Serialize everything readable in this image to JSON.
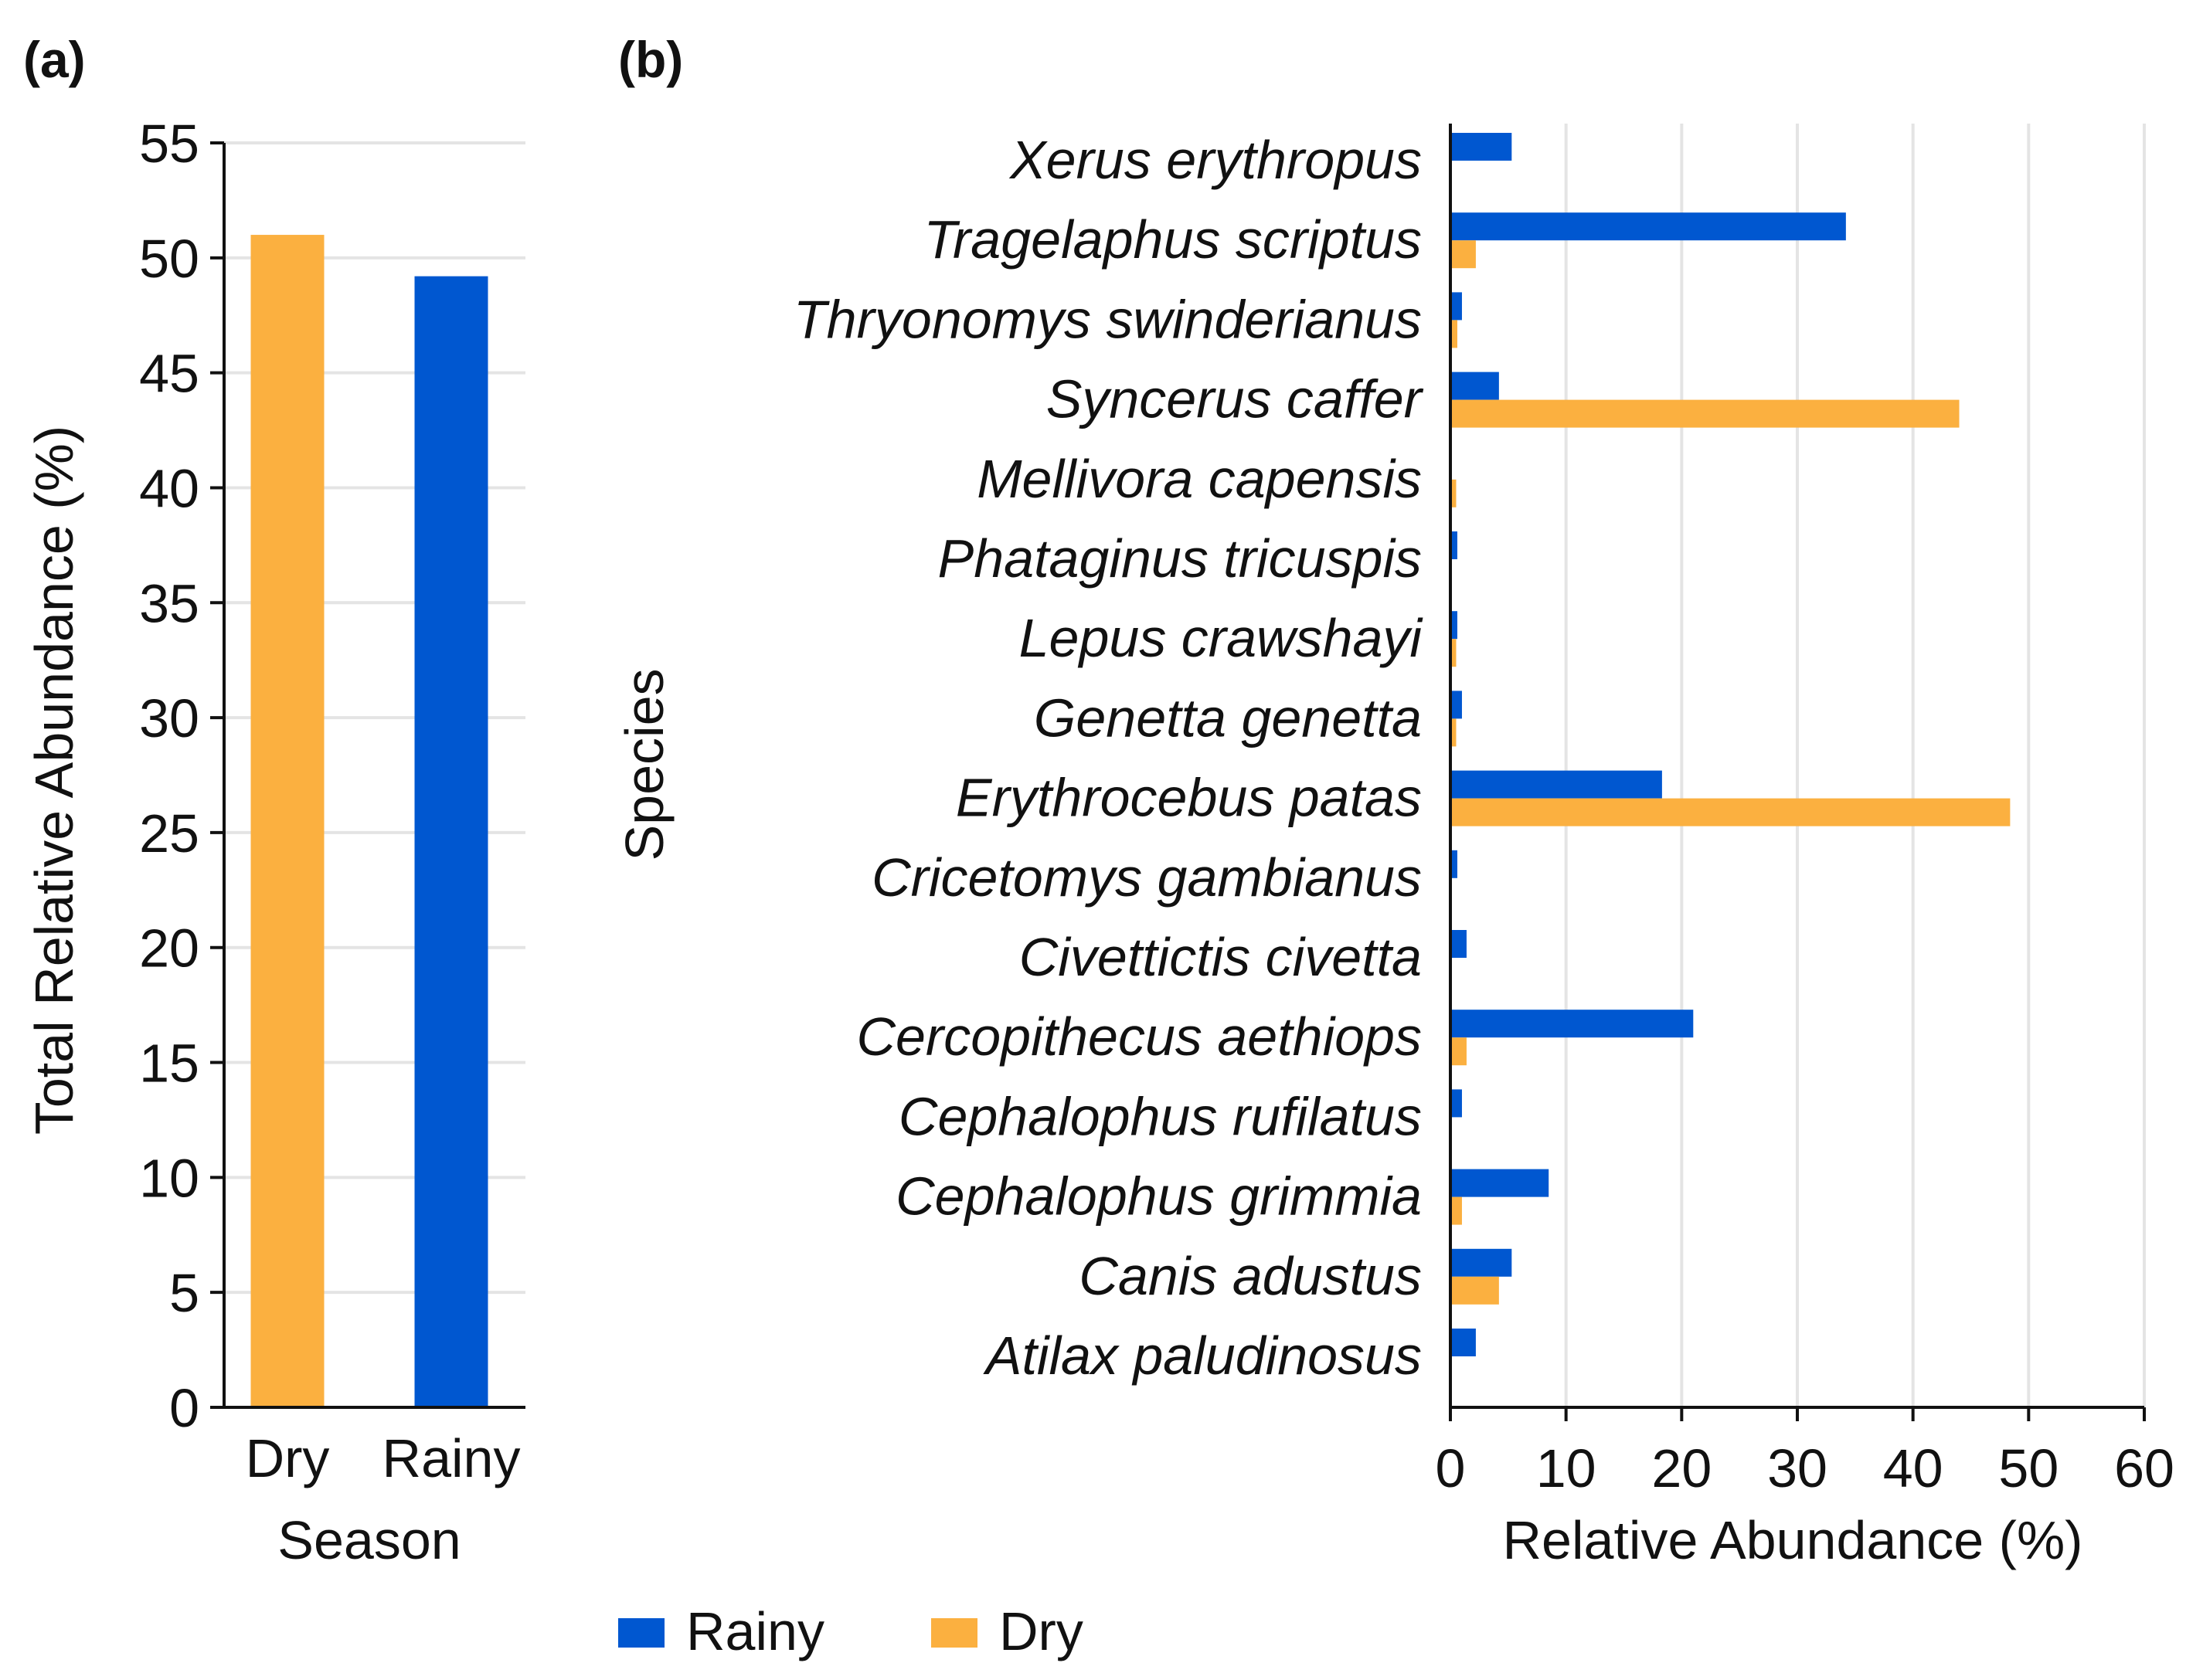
{
  "colors": {
    "rainy": "#0057D0",
    "dry": "#FBB040",
    "grid": "#E4E4E4",
    "axis": "#111111"
  },
  "chart_data": [
    {
      "panel": "(a)",
      "type": "bar",
      "categories": [
        "Dry",
        "Rainy"
      ],
      "values": [
        51.0,
        49.2
      ],
      "xlabel": "Season",
      "ylabel": "Total Relative Abundance (%)",
      "ylim": [
        0,
        55
      ],
      "yticks": [
        "0",
        "5",
        "10",
        "15",
        "20",
        "25",
        "30",
        "35",
        "40",
        "45",
        "50",
        "55"
      ],
      "grid": true
    },
    {
      "panel": "(b)",
      "type": "bar",
      "orientation": "horizontal",
      "categories": [
        "Xerus erythropus",
        "Tragelaphus scriptus",
        "Thryonomys swinderianus",
        "Syncerus caffer",
        "Mellivora capensis",
        "Phataginus tricuspis",
        "Lepus crawshayi",
        "Genetta genetta",
        "Erythrocebus patas",
        "Cricetomys gambianus",
        "Civettictis civetta",
        "Cercopithecus aethiops",
        "Cephalophus rufilatus",
        "Cephalophus grimmia",
        "Canis adustus",
        "Atilax paludinosus"
      ],
      "series": [
        {
          "name": "Rainy",
          "values": [
            5.3,
            34.2,
            1.0,
            4.2,
            0,
            0.6,
            0.6,
            1.0,
            18.3,
            0.6,
            1.4,
            21.0,
            1.0,
            8.5,
            5.3,
            2.2
          ]
        },
        {
          "name": "Dry",
          "values": [
            0,
            2.2,
            0.6,
            44.0,
            0.5,
            0,
            0.5,
            0.5,
            48.4,
            0,
            0,
            1.4,
            0,
            1.0,
            4.2,
            0
          ]
        }
      ],
      "xlabel": "Relative Abundance (%)",
      "ylabel": "Species",
      "xlim": [
        0,
        60
      ],
      "xticks": [
        "0",
        "10",
        "20",
        "30",
        "40",
        "50",
        "60"
      ],
      "grid": true,
      "legend": {
        "position": "bottom-left",
        "entries": [
          "Rainy",
          "Dry"
        ]
      }
    }
  ]
}
